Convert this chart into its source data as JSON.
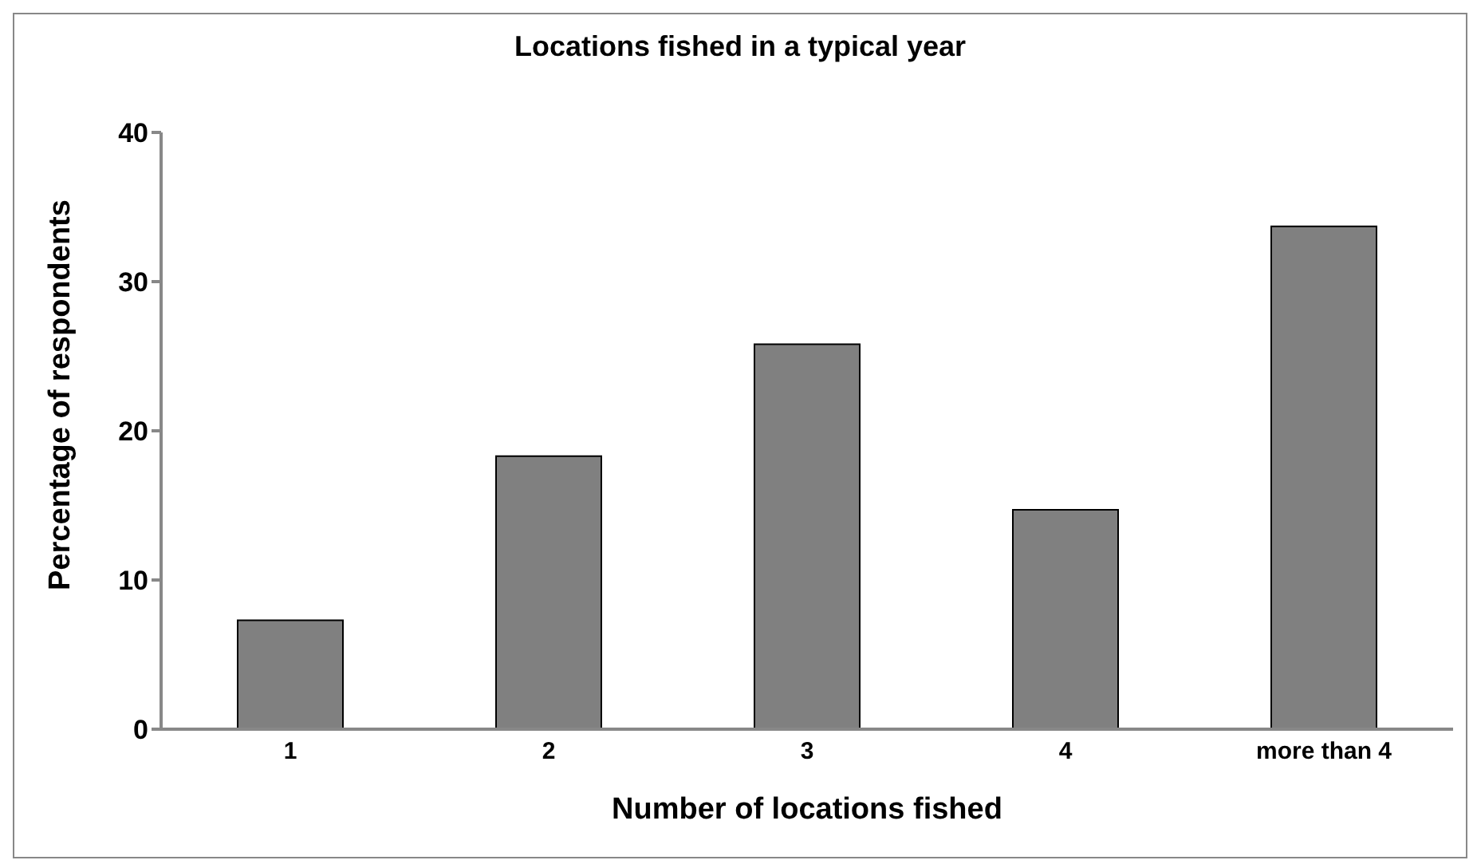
{
  "chart_data": {
    "type": "bar",
    "title": "Locations fished in a typical year",
    "xlabel": "Number of locations fished",
    "ylabel": "Percentage of respondents",
    "categories": [
      "1",
      "2",
      "3",
      "4",
      "more than 4"
    ],
    "values": [
      7.3,
      18.3,
      25.8,
      14.7,
      33.7
    ],
    "color": "#808080",
    "ylim": [
      0,
      40
    ],
    "yticks": [
      0,
      10,
      20,
      30,
      40
    ],
    "grid": false,
    "legend": false
  }
}
